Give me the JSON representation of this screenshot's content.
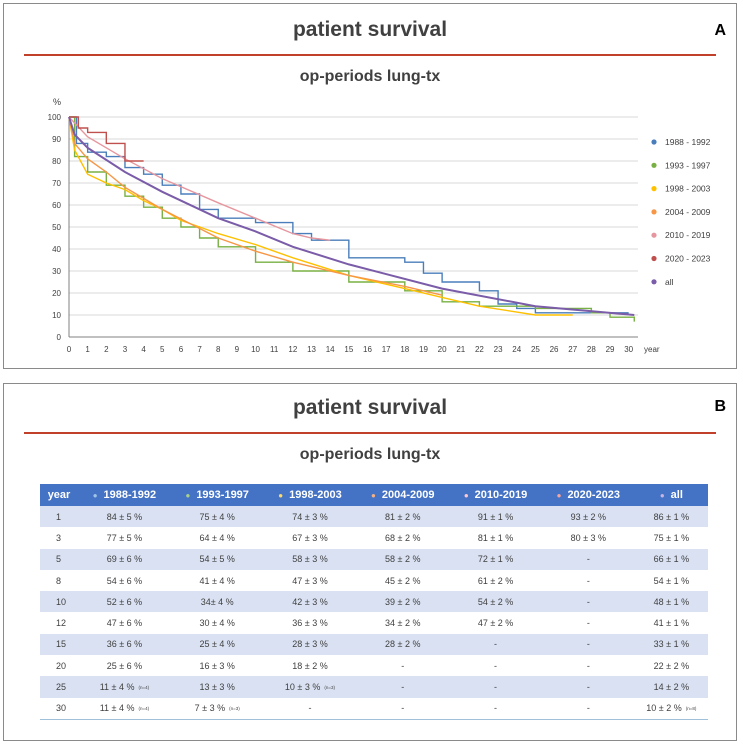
{
  "panel_a": {
    "title": "patient survival",
    "subtitle": "op-periods lung-tx",
    "letter": "A"
  },
  "panel_b": {
    "title": "patient survival",
    "subtitle": "op-periods lung-tx",
    "letter": "B",
    "table": {
      "headers": [
        "year",
        "1988-1992",
        "1993-1997",
        "1998-2003",
        "2004-2009",
        "2010-2019",
        "2020-2023",
        "all"
      ],
      "header_dot_colors": [
        "",
        "#9dc3e6",
        "#a9d18e",
        "#ffd966",
        "#f4b183",
        "#ffc7ce",
        "#f4a6a0",
        "#c9b3e0"
      ],
      "rows": [
        {
          "year": "1",
          "cells": [
            "84 ± 5 %",
            "75 ± 4 %",
            "74 ± 3 %",
            "81 ± 2 %",
            "91 ± 1 %",
            "93 ± 2 %",
            "86 ± 1 %"
          ],
          "notes": [
            "",
            "",
            "",
            "",
            "",
            "",
            ""
          ]
        },
        {
          "year": "3",
          "cells": [
            "77 ± 5 %",
            "64 ± 4 %",
            "67 ± 3 %",
            "68 ± 2 %",
            "81 ± 1 %",
            "80 ± 3 %",
            "75 ± 1 %"
          ],
          "notes": [
            "",
            "",
            "",
            "",
            "",
            "",
            ""
          ]
        },
        {
          "year": "5",
          "cells": [
            "69 ± 6 %",
            "54 ± 5 %",
            "58 ± 3 %",
            "58 ± 2 %",
            "72 ± 1 %",
            "-",
            "66 ± 1 %"
          ],
          "notes": [
            "",
            "",
            "",
            "",
            "",
            "",
            ""
          ]
        },
        {
          "year": "8",
          "cells": [
            "54 ± 6 %",
            "41 ± 4 %",
            "47 ± 3 %",
            "45 ± 2 %",
            "61 ± 2 %",
            "-",
            "54 ± 1 %"
          ],
          "notes": [
            "",
            "",
            "",
            "",
            "",
            "",
            ""
          ]
        },
        {
          "year": "10",
          "cells": [
            "52 ± 6 %",
            "34± 4 %",
            "42 ± 3 %",
            "39 ± 2 %",
            "54 ± 2 %",
            "-",
            "48 ± 1 %"
          ],
          "notes": [
            "",
            "",
            "",
            "",
            "",
            "",
            ""
          ]
        },
        {
          "year": "12",
          "cells": [
            "47 ± 6 %",
            "30 ± 4 %",
            "36 ± 3 %",
            "34 ± 2 %",
            "47 ± 2 %",
            "-",
            "41 ± 1 %"
          ],
          "notes": [
            "",
            "",
            "",
            "",
            "",
            "",
            ""
          ]
        },
        {
          "year": "15",
          "cells": [
            "36 ± 6 %",
            "25 ± 4 %",
            "28 ± 3 %",
            "28 ± 2 %",
            "-",
            "-",
            "33 ± 1 %"
          ],
          "notes": [
            "",
            "",
            "",
            "",
            "",
            "",
            ""
          ]
        },
        {
          "year": "20",
          "cells": [
            "25 ± 6 %",
            "16 ± 3 %",
            "18 ± 2 %",
            "-",
            "-",
            "-",
            "22 ± 2 %"
          ],
          "notes": [
            "",
            "",
            "",
            "",
            "",
            "",
            ""
          ]
        },
        {
          "year": "25",
          "cells": [
            "11 ± 4 %",
            "13 ± 3 %",
            "10 ± 3 %",
            "-",
            "-",
            "-",
            "14 ± 2 %"
          ],
          "notes": [
            "(n=4)",
            "",
            "(n=3)",
            "",
            "",
            "",
            ""
          ]
        },
        {
          "year": "30",
          "cells": [
            "11 ± 4 %",
            "7 ± 3 %",
            "-",
            "-",
            "-",
            "-",
            "10 ± 2 %"
          ],
          "notes": [
            "(n=4)",
            "(n=3)",
            "",
            "",
            "",
            "",
            "(n=8)"
          ]
        }
      ]
    }
  },
  "chart_data": {
    "type": "line",
    "title": "op-periods lung-tx",
    "xlabel": "year",
    "ylabel": "%",
    "xlim": [
      0,
      30.5
    ],
    "ylim": [
      0,
      100
    ],
    "x_ticks": [
      "0",
      "1",
      "2",
      "3",
      "4",
      "5",
      "6",
      "7",
      "8",
      "9",
      "10",
      "11",
      "12",
      "13",
      "14",
      "15",
      "16",
      "17",
      "18",
      "19",
      "20",
      "21",
      "22",
      "23",
      "24",
      "25",
      "26",
      "27",
      "28",
      "29",
      "30"
    ],
    "y_ticks": [
      "0",
      "10",
      "20",
      "30",
      "40",
      "50",
      "60",
      "70",
      "80",
      "90",
      "100"
    ],
    "grid": true,
    "legend_position": "right",
    "series": [
      {
        "name": "1988 - 1992",
        "color": "#4a7ebb",
        "step": true,
        "x": [
          0,
          0.4,
          1,
          2,
          3,
          4,
          5,
          6,
          7,
          8,
          10,
          12,
          13,
          15,
          18,
          19,
          20,
          22,
          23,
          24,
          25,
          30
        ],
        "y": [
          100,
          88,
          84,
          82,
          77,
          74,
          69,
          65,
          58,
          54,
          52,
          47,
          44,
          36,
          34,
          29,
          25,
          21,
          15,
          13,
          11,
          11
        ]
      },
      {
        "name": "1993 - 1997",
        "color": "#78b043",
        "step": true,
        "x": [
          0,
          0.3,
          1,
          2,
          3,
          4,
          5,
          6,
          7,
          8,
          10,
          12,
          15,
          18,
          20,
          22,
          25,
          28,
          29,
          30.3
        ],
        "y": [
          100,
          82,
          75,
          69,
          64,
          59,
          54,
          50,
          45,
          41,
          34,
          30,
          25,
          21,
          16,
          14,
          13,
          11,
          9,
          7
        ]
      },
      {
        "name": "1998 - 2003",
        "color": "#ffc000",
        "step": false,
        "x": [
          0,
          0.3,
          1,
          2,
          3,
          4,
          5,
          6,
          7,
          8,
          10,
          12,
          15,
          18,
          20,
          22,
          25,
          27
        ],
        "y": [
          100,
          85,
          74,
          70,
          67,
          62,
          58,
          53,
          50,
          47,
          42,
          36,
          28,
          22,
          18,
          14,
          10,
          10
        ]
      },
      {
        "name": "2004 - 2009",
        "color": "#f79646",
        "step": false,
        "x": [
          0,
          0.3,
          1,
          2,
          3,
          5,
          8,
          10,
          12,
          15,
          18,
          20
        ],
        "y": [
          100,
          88,
          81,
          75,
          68,
          58,
          45,
          39,
          34,
          28,
          23,
          19
        ]
      },
      {
        "name": "2010 - 2019",
        "color": "#e6969e",
        "step": false,
        "x": [
          0,
          1,
          3,
          5,
          8,
          10,
          12,
          13,
          14
        ],
        "y": [
          100,
          91,
          81,
          72,
          61,
          54,
          47,
          45,
          44
        ]
      },
      {
        "name": "2020 - 2023",
        "color": "#c0504d",
        "step": true,
        "x": [
          0,
          0.5,
          1,
          2,
          3,
          4
        ],
        "y": [
          100,
          95,
          93,
          88,
          80,
          80
        ]
      },
      {
        "name": "all",
        "color": "#7a5ca8",
        "step": false,
        "x": [
          0,
          0.3,
          1,
          3,
          5,
          8,
          10,
          12,
          15,
          20,
          25,
          30.3
        ],
        "y": [
          100,
          92,
          86,
          75,
          66,
          54,
          48,
          41,
          33,
          22,
          14,
          10
        ]
      }
    ]
  }
}
